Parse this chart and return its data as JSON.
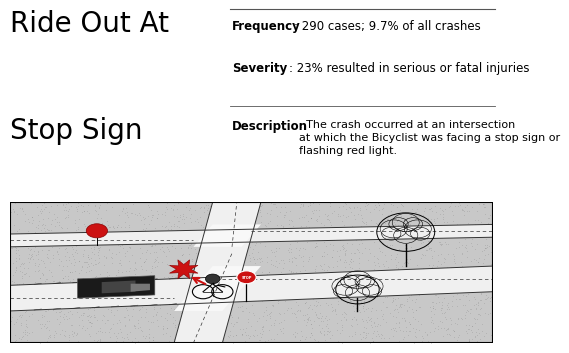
{
  "title_line1": "Ride Out At",
  "title_line2": "Stop Sign",
  "freq_label": "Frequency",
  "freq_value": ": 290 cases; 9.7% of all crashes",
  "sev_label": "Severity",
  "sev_value": ": 23% resulted in serious or fatal injuries",
  "desc_label": "Description",
  "desc_value": ": The crash occurred at an intersection\nat which the Bicyclist was facing a stop sign or\nflashing red light.",
  "bg_color": "#ffffff",
  "title_font_size": 20,
  "text_font_size": 8.5,
  "desc_font_size": 8.5,
  "divider_color": "#555555",
  "road_light": "#f5f5f5",
  "road_dark": "#e0e0e0",
  "stipple_color": "#aaaaaa",
  "red_color": "#cc1111",
  "car_color": "#111111",
  "line_color": "#333333"
}
